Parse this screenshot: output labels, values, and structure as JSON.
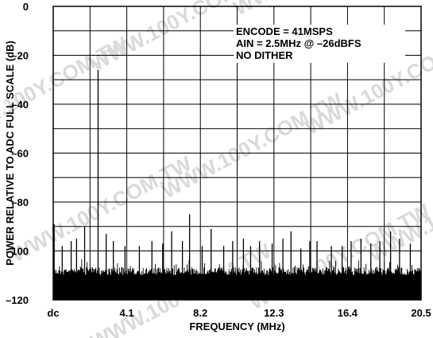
{
  "chart_data": {
    "type": "line",
    "title": "",
    "xlabel": "FREQUENCY (MHz)",
    "ylabel": "POWER RELATIVE TO ADC FULL SCALE (dB)",
    "x_ticks": [
      "dc",
      "4.1",
      "8.2",
      "12.3",
      "16.4",
      "20.5"
    ],
    "x_tick_values": [
      0,
      4.1,
      8.2,
      12.3,
      16.4,
      20.5
    ],
    "xlim": [
      0,
      20.5
    ],
    "y_ticks": [
      "0",
      "–20",
      "–40",
      "–60",
      "–80",
      "–100",
      "–120"
    ],
    "y_tick_values": [
      0,
      -20,
      -40,
      -60,
      -80,
      -100,
      -120
    ],
    "ylim": [
      -120,
      0
    ],
    "grid": true,
    "annotations": [
      "ENCODE = 41MSPS",
      "AIN = 2.5MHz @ –26dBFS",
      "NO DITHER"
    ],
    "annotation_placement": "top-right",
    "watermark": "WWW.100Y.COM.TW",
    "noise_floor_db": -108,
    "series": [
      {
        "values": [
          {
            "x": 0.05,
            "y": -89
          },
          {
            "x": 0.5,
            "y": -98
          },
          {
            "x": 1.0,
            "y": -96
          },
          {
            "x": 1.3,
            "y": -95
          },
          {
            "x": 1.75,
            "y": -90
          },
          {
            "x": 2.5,
            "y": -26
          },
          {
            "x": 2.95,
            "y": -93
          },
          {
            "x": 3.35,
            "y": -96
          },
          {
            "x": 4.0,
            "y": -98
          },
          {
            "x": 4.8,
            "y": -98
          },
          {
            "x": 5.5,
            "y": -96
          },
          {
            "x": 6.1,
            "y": -97
          },
          {
            "x": 6.6,
            "y": -92
          },
          {
            "x": 7.2,
            "y": -96
          },
          {
            "x": 7.6,
            "y": -85
          },
          {
            "x": 8.3,
            "y": -98
          },
          {
            "x": 8.8,
            "y": -91
          },
          {
            "x": 9.5,
            "y": -98
          },
          {
            "x": 10.0,
            "y": -96
          },
          {
            "x": 10.6,
            "y": -95
          },
          {
            "x": 11.0,
            "y": -98
          },
          {
            "x": 11.5,
            "y": -96
          },
          {
            "x": 12.2,
            "y": -97
          },
          {
            "x": 12.8,
            "y": -95
          },
          {
            "x": 13.25,
            "y": -92
          },
          {
            "x": 13.8,
            "y": -99
          },
          {
            "x": 14.3,
            "y": -96
          },
          {
            "x": 14.7,
            "y": -96
          },
          {
            "x": 15.5,
            "y": -98
          },
          {
            "x": 16.1,
            "y": -98
          },
          {
            "x": 16.6,
            "y": -96
          },
          {
            "x": 17.15,
            "y": -95
          },
          {
            "x": 17.7,
            "y": -97
          },
          {
            "x": 18.2,
            "y": -96
          },
          {
            "x": 18.8,
            "y": -92
          },
          {
            "x": 19.3,
            "y": -95
          },
          {
            "x": 19.9,
            "y": -97
          }
        ]
      }
    ]
  }
}
